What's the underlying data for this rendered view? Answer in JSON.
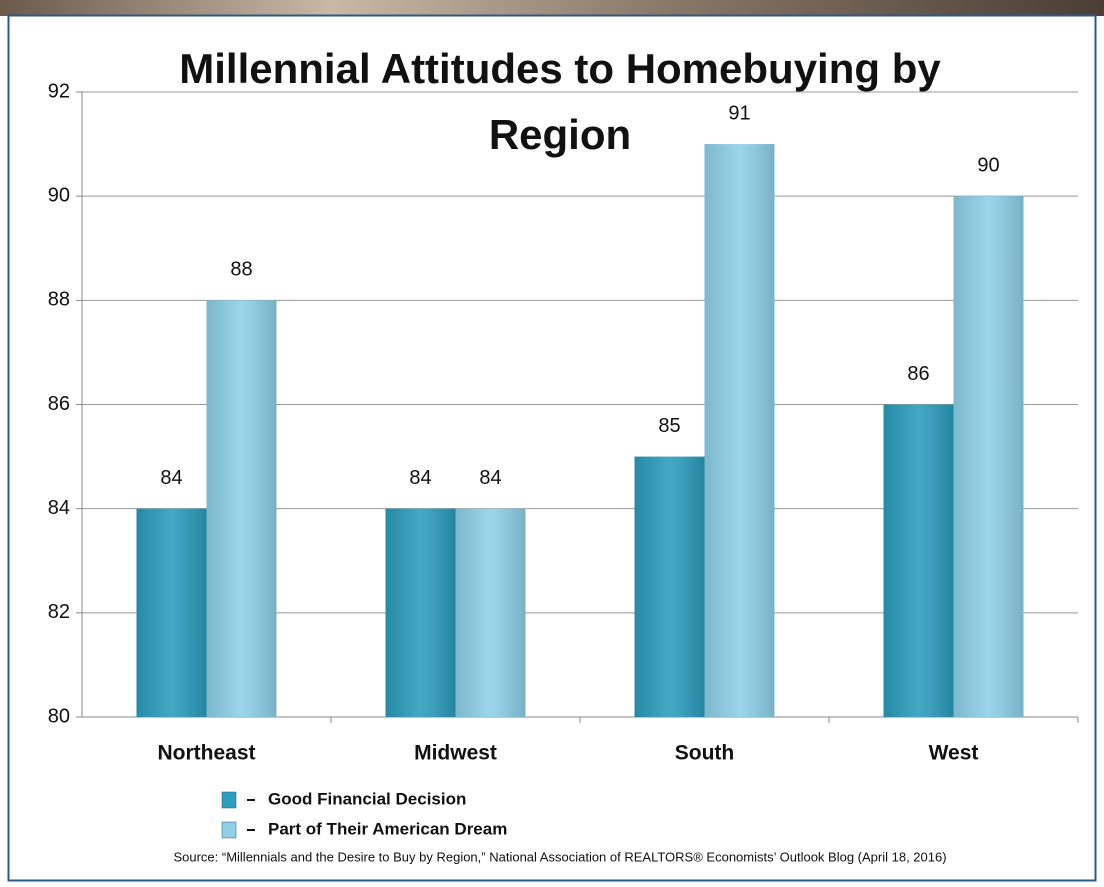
{
  "chart_data": {
    "type": "bar",
    "title": "Millennial Attitudes to Homebuying by Region",
    "categories": [
      "Northeast",
      "Midwest",
      "South",
      "West"
    ],
    "series": [
      {
        "name": "Good Financial Decision",
        "color": "#2b9dbd",
        "values": [
          84,
          84,
          85,
          86
        ]
      },
      {
        "name": "Part of Their American Dream",
        "color": "#8dd0e8",
        "values": [
          88,
          84,
          91,
          90
        ]
      }
    ],
    "ylim": [
      80,
      92
    ],
    "yticks": [
      80,
      82,
      84,
      86,
      88,
      90,
      92
    ],
    "grid": true,
    "source": "Source: “Millennials  and the Desire to Buy by Region,” National Association of REALTORS® Economists’ Outlook Blog (April 18, 2016)"
  }
}
